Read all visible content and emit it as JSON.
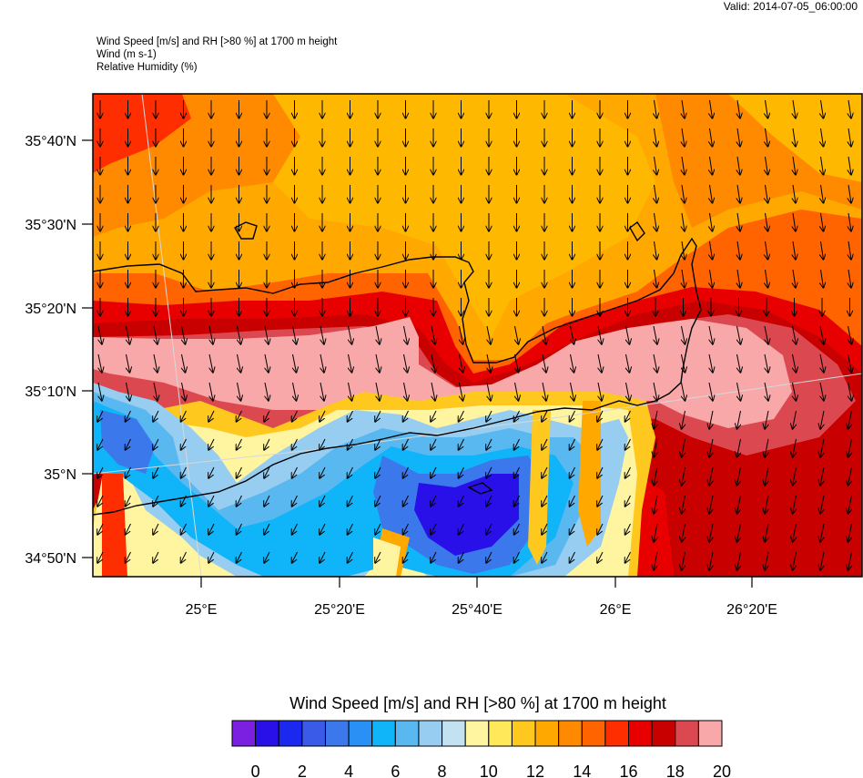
{
  "header": {
    "valid": "Valid: 2014-07-05_06:00:00",
    "line1": "Wind Speed [m/s] and RH [>80 %] at 1700 m height",
    "line2": "Wind   (m s-1)",
    "line3": "Relative Humidity   (%)"
  },
  "axes": {
    "lat_labels": [
      "35°40'N",
      "35°30'N",
      "35°20'N",
      "35°10'N",
      "35°N",
      "34°50'N"
    ],
    "lon_labels": [
      "25°E",
      "25°20'E",
      "25°40'E",
      "26°E",
      "26°20'E"
    ]
  },
  "colorbar": {
    "title": "Wind Speed [m/s] and RH [>80 %] at 1700 m height",
    "tick_labels": [
      "0",
      "2",
      "4",
      "6",
      "8",
      "10",
      "12",
      "14",
      "16",
      "18",
      "20"
    ],
    "colors": [
      "#7b1fe0",
      "#2a10e8",
      "#1a28f0",
      "#3a5ae8",
      "#3a78ec",
      "#2a90f5",
      "#10b4f8",
      "#5ab8f0",
      "#96cdf0",
      "#c2e2f2",
      "#fff5a0",
      "#ffe85a",
      "#ffc81e",
      "#ffa800",
      "#ff8a00",
      "#ff6400",
      "#ff2e00",
      "#e80000",
      "#c80000",
      "#dc4850",
      "#f8a8a8"
    ]
  }
}
